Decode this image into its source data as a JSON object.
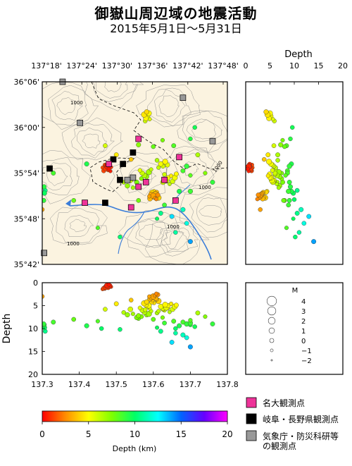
{
  "title": "御嶽山周辺域の地震活動",
  "subtitle": "2015年5月1日～5月31日",
  "map": {
    "lon_ticks": [
      "137°18'",
      "137°24'",
      "137°30'",
      "137°36'",
      "137°42'",
      "137°48'"
    ],
    "lat_ticks": [
      "36°06'",
      "36°00'",
      "35°54'",
      "35°48'",
      "35°42'"
    ],
    "contour_label": "1000"
  },
  "depth_panel_right": {
    "xlabel": "Depth",
    "ticks": [
      "0",
      "5",
      "10",
      "15",
      "20"
    ]
  },
  "depth_panel_bottom": {
    "ylabel": "Depth",
    "yticks": [
      "0",
      "5",
      "10",
      "15",
      "20"
    ],
    "xticks": [
      "137.3",
      "137.4",
      "137.5",
      "137.6",
      "137.7",
      "137.8"
    ]
  },
  "magnitude_legend": {
    "title": "M",
    "levels": [
      "4",
      "3",
      "2",
      "1",
      "0",
      "−1",
      "−2"
    ]
  },
  "colorbar": {
    "ticks": [
      "0",
      "5",
      "10",
      "15",
      "20"
    ],
    "label": "Depth (km)",
    "stops": [
      "#ff0000",
      "#ff8c00",
      "#ffff00",
      "#7fff00",
      "#00ff66",
      "#00ffff",
      "#0064ff",
      "#6600ff",
      "#ff00ff"
    ]
  },
  "station_legend": [
    {
      "label": "名大観測点",
      "color": "#ee3399"
    },
    {
      "label": "岐阜・長野県観測点",
      "color": "#000000"
    },
    {
      "label": "気象庁・防災科研等の観測点",
      "color": "#999999"
    }
  ],
  "chart_data": {
    "type": "scatter",
    "xlabel": "",
    "ylabel": "",
    "lon_range": [
      137.3,
      137.8
    ],
    "lat_range": [
      35.7,
      36.1
    ],
    "depth_range": [
      0,
      20
    ],
    "magnitude_range": [
      -2,
      4
    ],
    "events": [
      [
        137.476,
        35.914,
        0.6,
        1.0
      ],
      [
        137.482,
        35.919,
        0.8,
        0.3
      ],
      [
        137.471,
        35.91,
        1.0,
        0.6
      ],
      [
        137.48,
        35.909,
        0.4,
        -0.2
      ],
      [
        137.466,
        35.905,
        1.2,
        0.1
      ],
      [
        137.486,
        35.913,
        0.9,
        -0.5
      ],
      [
        137.473,
        35.916,
        0.7,
        0.4
      ],
      [
        137.469,
        35.918,
        1.3,
        -0.3
      ],
      [
        137.478,
        35.907,
        1.1,
        0.0
      ],
      [
        137.484,
        35.904,
        0.6,
        -0.6
      ],
      [
        137.463,
        35.912,
        1.4,
        -0.4
      ],
      [
        137.6,
        35.85,
        3.0,
        1.2
      ],
      [
        137.606,
        35.855,
        3.4,
        0.5
      ],
      [
        137.612,
        35.852,
        2.6,
        0.2
      ],
      [
        137.598,
        35.847,
        3.8,
        -0.2
      ],
      [
        137.594,
        35.853,
        3.2,
        0.8
      ],
      [
        137.604,
        35.845,
        2.8,
        -0.5
      ],
      [
        137.609,
        35.858,
        3.6,
        0.0
      ],
      [
        137.596,
        35.858,
        4.2,
        0.3
      ],
      [
        137.589,
        35.849,
        3.0,
        -0.4
      ],
      [
        137.614,
        35.846,
        4.0,
        1.0
      ],
      [
        137.602,
        35.86,
        4.4,
        -0.1
      ],
      [
        137.591,
        35.844,
        3.5,
        0.6
      ],
      [
        137.608,
        35.843,
        2.4,
        -0.3
      ],
      [
        137.64,
        35.89,
        5.0,
        0.3
      ],
      [
        137.635,
        35.884,
        5.4,
        1.1
      ],
      [
        137.648,
        35.894,
        4.6,
        -0.2
      ],
      [
        137.652,
        35.882,
        5.8,
        0.5
      ],
      [
        137.63,
        35.897,
        6.0,
        0.0
      ],
      [
        137.658,
        35.89,
        5.2,
        0.9
      ],
      [
        137.644,
        35.876,
        6.4,
        -0.4
      ],
      [
        137.662,
        35.898,
        4.9,
        0.2
      ],
      [
        137.626,
        35.88,
        5.6,
        0.6
      ],
      [
        137.57,
        35.9,
        6.0,
        0.4
      ],
      [
        137.576,
        35.895,
        6.4,
        0.8
      ],
      [
        137.564,
        35.906,
        5.5,
        -0.1
      ],
      [
        137.582,
        35.892,
        7.0,
        0.3
      ],
      [
        137.588,
        35.902,
        6.8,
        1.0
      ],
      [
        137.568,
        35.888,
        7.4,
        0.0
      ],
      [
        137.594,
        35.908,
        6.2,
        -0.3
      ],
      [
        137.62,
        35.92,
        5.2,
        0.6
      ],
      [
        137.626,
        35.915,
        5.8,
        0.1
      ],
      [
        137.632,
        35.925,
        4.8,
        0.9
      ],
      [
        137.614,
        35.912,
        6.2,
        -0.2
      ],
      [
        137.638,
        35.918,
        5.5,
        0.4
      ],
      [
        137.61,
        35.928,
        6.6,
        0.0
      ],
      [
        137.58,
        36.02,
        4.8,
        0.7
      ],
      [
        137.585,
        36.025,
        5.2,
        0.2
      ],
      [
        137.575,
        36.028,
        4.5,
        1.0
      ],
      [
        137.59,
        36.018,
        5.6,
        -0.3
      ],
      [
        137.582,
        36.034,
        4.2,
        0.4
      ],
      [
        137.578,
        36.014,
        5.9,
        0.0
      ],
      [
        137.588,
        36.031,
        5.0,
        0.8
      ],
      [
        137.52,
        35.88,
        6.5,
        0.0
      ],
      [
        137.53,
        35.872,
        7.0,
        0.4
      ],
      [
        137.545,
        35.868,
        6.8,
        -0.2
      ],
      [
        137.555,
        35.88,
        7.6,
        0.3
      ],
      [
        137.538,
        35.884,
        5.8,
        0.6
      ],
      [
        137.68,
        35.905,
        8.6,
        0.2
      ],
      [
        137.69,
        35.915,
        9.0,
        0.5
      ],
      [
        137.7,
        35.895,
        8.2,
        -0.1
      ],
      [
        137.67,
        35.86,
        9.4,
        0.3
      ],
      [
        137.66,
        35.842,
        10.0,
        0.0
      ],
      [
        137.7,
        35.86,
        8.8,
        0.4
      ],
      [
        137.56,
        35.962,
        7.2,
        0.3
      ],
      [
        137.6,
        35.958,
        8.0,
        0.1
      ],
      [
        137.625,
        35.972,
        7.6,
        -0.2
      ],
      [
        137.655,
        35.96,
        8.4,
        0.2
      ],
      [
        137.7,
        35.975,
        9.2,
        0.0
      ],
      [
        137.63,
        35.83,
        8.8,
        0.1
      ],
      [
        137.62,
        35.812,
        10.6,
        0.2
      ],
      [
        137.68,
        35.82,
        11.4,
        0.3
      ],
      [
        137.61,
        35.8,
        9.8,
        -0.3
      ],
      [
        137.56,
        35.84,
        7.8,
        0.1
      ],
      [
        137.51,
        35.76,
        10.2,
        0.0
      ],
      [
        137.42,
        35.92,
        9.4,
        0.3
      ],
      [
        137.385,
        35.84,
        8.0,
        0.1
      ],
      [
        137.33,
        35.9,
        8.6,
        0.2
      ],
      [
        137.45,
        35.78,
        8.4,
        -0.2
      ],
      [
        137.46,
        35.69,
        10.0,
        0.0
      ],
      [
        137.305,
        35.87,
        9.2,
        0.3
      ],
      [
        137.306,
        35.856,
        9.8,
        0.4
      ],
      [
        137.308,
        35.862,
        10.6,
        0.1
      ],
      [
        137.304,
        35.84,
        9.0,
        0.2
      ],
      [
        137.712,
        36.0,
        9.6,
        0.0
      ],
      [
        137.72,
        35.94,
        6.6,
        0.2
      ],
      [
        137.74,
        35.9,
        7.4,
        -0.2
      ],
      [
        137.76,
        35.88,
        9.0,
        0.2
      ],
      [
        137.65,
        35.805,
        13.0,
        0.2
      ],
      [
        137.69,
        35.79,
        12.0,
        0.1
      ],
      [
        137.7,
        35.75,
        14.0,
        0.3
      ],
      [
        137.66,
        35.77,
        11.0,
        0.0
      ],
      [
        137.3,
        35.82,
        3.0,
        0.0
      ],
      [
        137.47,
        35.96,
        5.8,
        0.1
      ],
      [
        137.5,
        35.94,
        4.6,
        0.2
      ],
      [
        137.54,
        35.93,
        3.8,
        0.0
      ]
    ],
    "stations": {
      "nagoya_univ": [
        [
          137.56,
          35.975
        ],
        [
          137.48,
          35.92
        ],
        [
          137.67,
          35.935
        ],
        [
          137.56,
          35.87
        ],
        [
          137.54,
          35.825
        ],
        [
          137.66,
          35.84
        ],
        [
          137.58,
          35.88
        ],
        [
          137.415,
          35.835
        ],
        [
          137.63,
          35.885
        ]
      ],
      "gifu_nagano": [
        [
          137.32,
          35.91
        ],
        [
          137.492,
          35.93
        ],
        [
          137.518,
          35.92
        ],
        [
          137.51,
          35.885
        ],
        [
          137.545,
          35.945
        ],
        [
          137.47,
          35.835
        ]
      ],
      "jma_nied": [
        [
          137.355,
          36.1
        ],
        [
          137.402,
          36.01
        ],
        [
          137.68,
          36.065
        ],
        [
          137.76,
          35.97
        ],
        [
          137.545,
          35.89
        ],
        [
          137.53,
          35.885
        ],
        [
          137.305,
          35.725
        ]
      ]
    }
  }
}
